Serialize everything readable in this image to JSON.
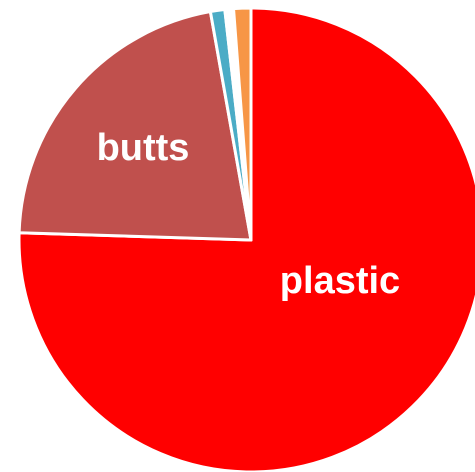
{
  "chart_data": {
    "type": "pie",
    "start_angle_deg": 0,
    "direction": "clockwise",
    "slices": [
      {
        "label": "plastic",
        "value": 75.5,
        "color": "#ff0000",
        "show_label": true
      },
      {
        "label": "butts",
        "value": 21.7,
        "color": "#c0504d",
        "show_label": true
      },
      {
        "label": "",
        "value": 1.0,
        "color": "#4bacc6",
        "show_label": false
      },
      {
        "label": "",
        "value": 0.6,
        "color": "#ffffff",
        "show_label": false
      },
      {
        "label": "",
        "value": 1.2,
        "color": "#f79646",
        "show_label": false
      }
    ],
    "legend": "none",
    "title": ""
  }
}
